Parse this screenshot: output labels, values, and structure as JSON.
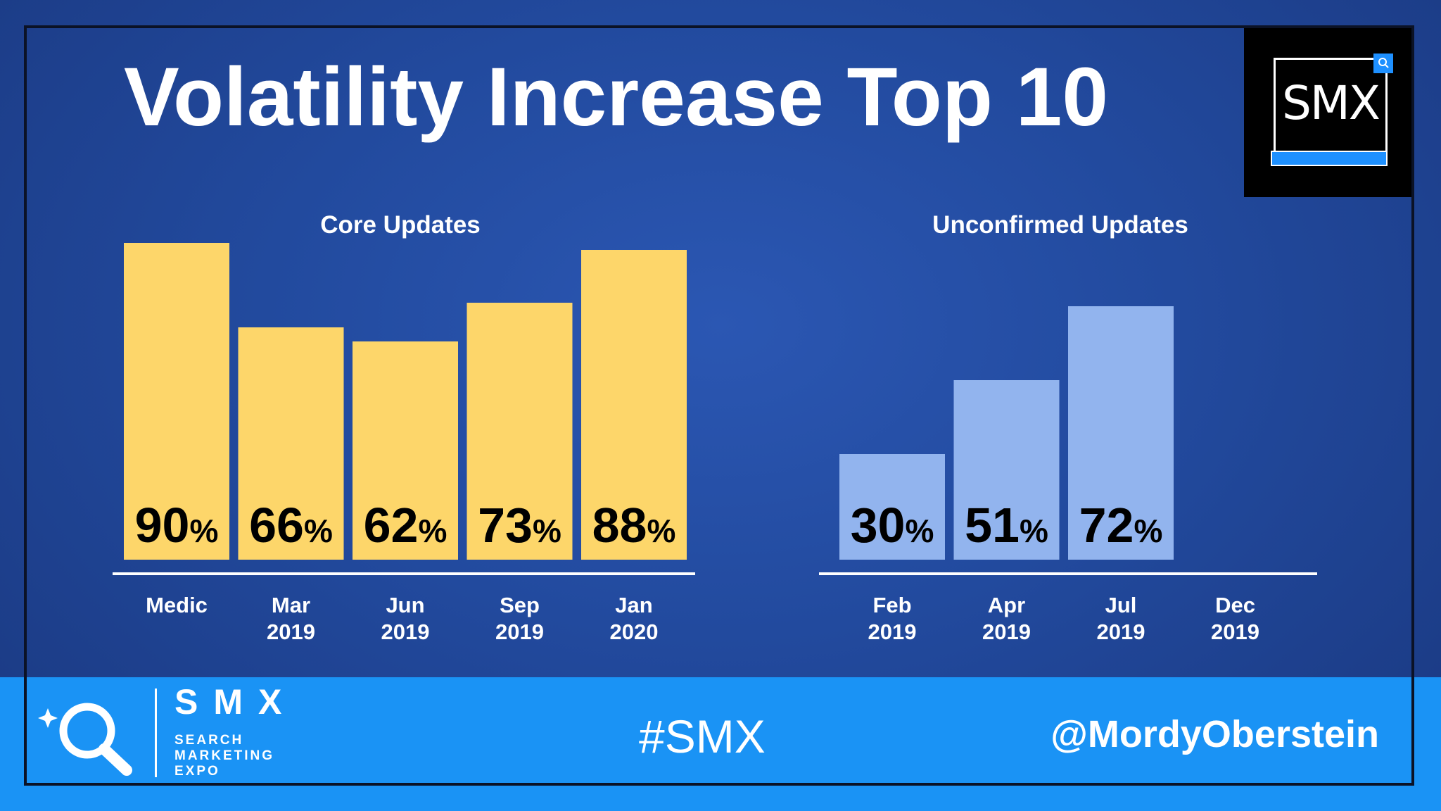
{
  "slide": {
    "title": "Volatility Increase Top 10",
    "badge": "SMX"
  },
  "chart_data": [
    {
      "type": "bar",
      "title": "Core Updates",
      "categories": [
        [
          "Medic"
        ],
        [
          "Mar",
          "2019"
        ],
        [
          "Jun",
          "2019"
        ],
        [
          "Sep",
          "2019"
        ],
        [
          "Jan",
          "2020"
        ]
      ],
      "values": [
        90,
        66,
        62,
        73,
        88
      ],
      "value_suffix": "%",
      "ylim": [
        0,
        100
      ],
      "grid": false,
      "color": "#fdd66a",
      "label_color": "#000000"
    },
    {
      "type": "bar",
      "title": "Unconfirmed Updates",
      "categories": [
        [
          "Feb",
          "2019"
        ],
        [
          "Apr",
          "2019"
        ],
        [
          "Jul",
          "2019"
        ],
        [
          "Dec",
          "2019"
        ]
      ],
      "values": [
        30,
        51,
        72,
        null
      ],
      "value_suffix": "%",
      "ylim": [
        0,
        100
      ],
      "grid": false,
      "color": "#92b4ee",
      "label_color": "#000000"
    }
  ],
  "footer": {
    "brand": "SMX",
    "brand_sub": [
      "SEARCH",
      "MARKETING",
      "EXPO"
    ],
    "logo_icon": "magnifier-icon",
    "hashtag": "#SMX",
    "handle": "@MordyOberstein"
  },
  "colors": {
    "background": "#224a9e",
    "footer": "#1a93f5",
    "accent": "#1e90ff"
  }
}
